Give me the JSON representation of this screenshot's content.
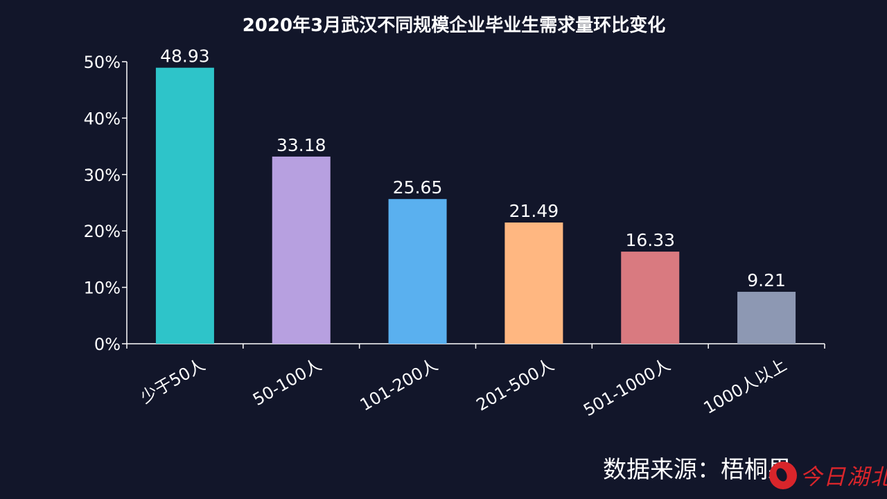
{
  "chart_data": {
    "type": "bar",
    "title": "2020年3月武汉不同规模企业毕业生需求量环比变化",
    "categories": [
      "少于50人",
      "50-100人",
      "101-200人",
      "201-500人",
      "501-1000人",
      "1000人以上"
    ],
    "values": [
      48.93,
      33.18,
      25.65,
      21.49,
      16.33,
      9.21
    ],
    "data_labels": [
      "48.93",
      "33.18",
      "25.65",
      "21.49",
      "16.33",
      "9.21"
    ],
    "colors": [
      "#2ec4c9",
      "#b7a0e0",
      "#5ab0ef",
      "#ffb781",
      "#d97a80",
      "#8d98b3"
    ],
    "ylim": [
      0,
      50
    ],
    "yticks": [
      0,
      10,
      20,
      30,
      40,
      50
    ],
    "ytick_labels": [
      "0%",
      "10%",
      "20%",
      "30%",
      "40%",
      "50%"
    ],
    "xlabel": "",
    "ylabel": "",
    "grid": false,
    "legend": "none"
  },
  "source_text": "数据来源：梧桐果",
  "logo": {
    "icon": "logo-mark-icon",
    "text": "今日湖北",
    "color": "#d9252b"
  }
}
